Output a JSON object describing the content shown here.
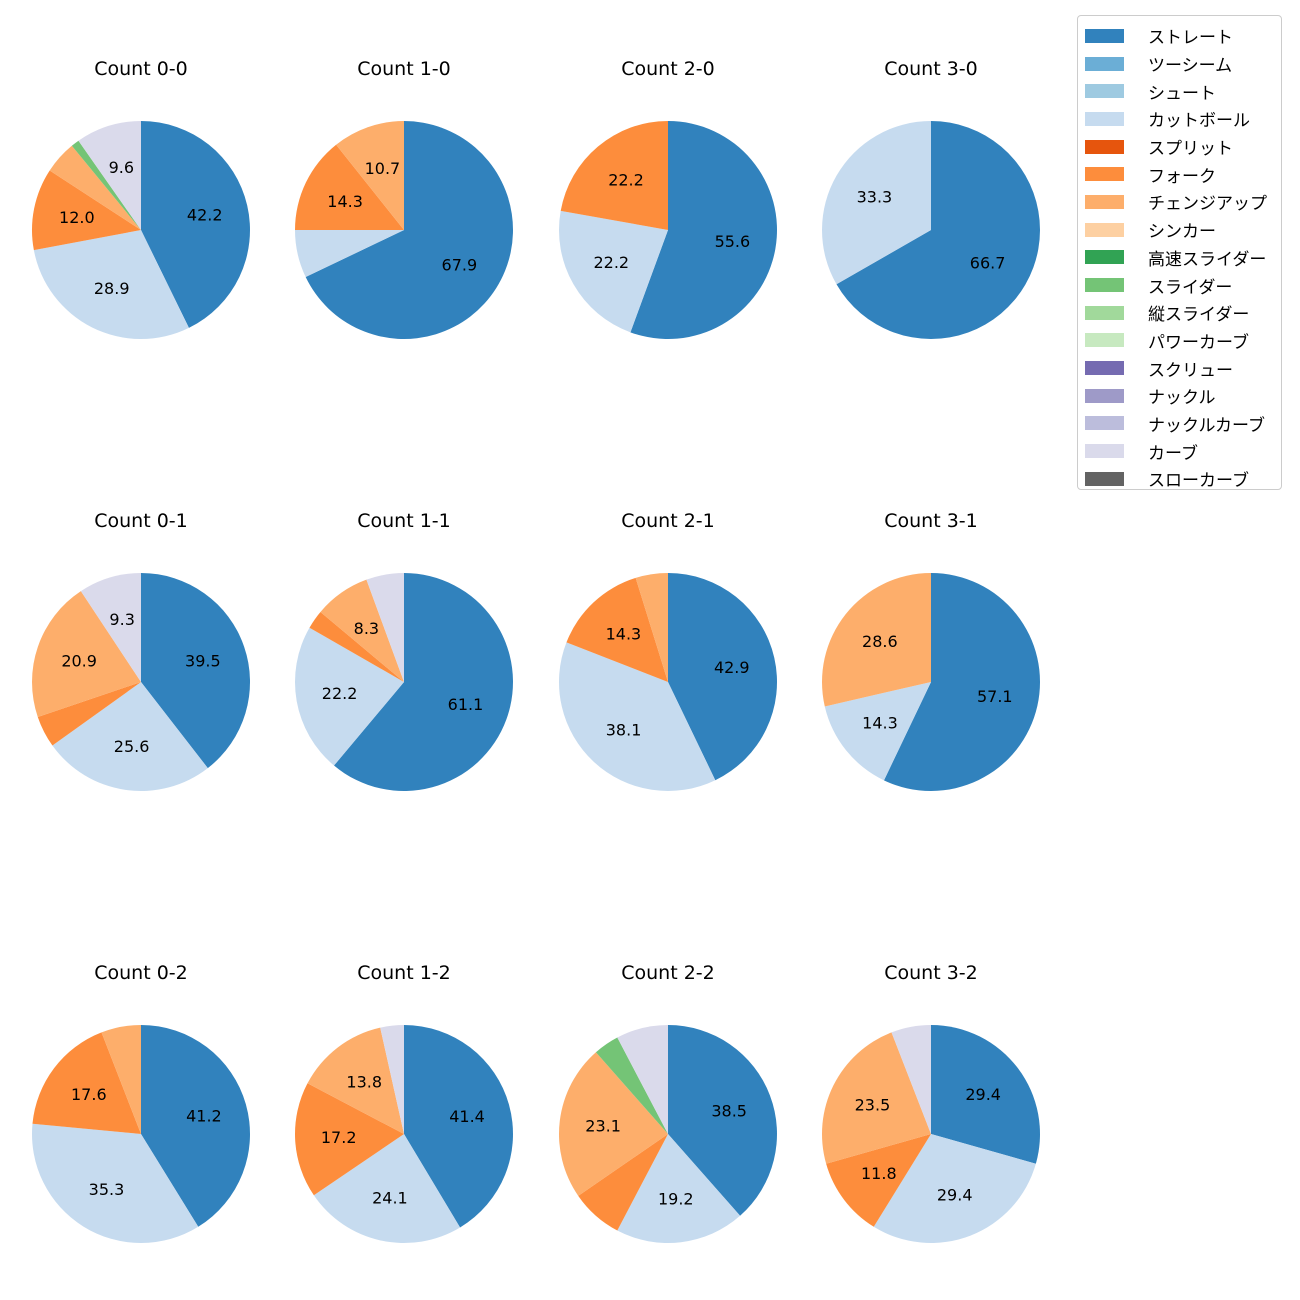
{
  "chart_data": {
    "type": "pie",
    "legend_position": "top-right",
    "legend": [
      {
        "label": "ストレート",
        "color": "#3182bd"
      },
      {
        "label": "ツーシーム",
        "color": "#6baed6"
      },
      {
        "label": "シュート",
        "color": "#9ecae1"
      },
      {
        "label": "カットボール",
        "color": "#c6dbef"
      },
      {
        "label": "スプリット",
        "color": "#e6550d"
      },
      {
        "label": "フォーク",
        "color": "#fd8d3c"
      },
      {
        "label": "チェンジアップ",
        "color": "#fdae6b"
      },
      {
        "label": "シンカー",
        "color": "#fdd0a2"
      },
      {
        "label": "高速スライダー",
        "color": "#31a354"
      },
      {
        "label": "スライダー",
        "color": "#74c476"
      },
      {
        "label": "縦スライダー",
        "color": "#a1d99b"
      },
      {
        "label": "パワーカーブ",
        "color": "#c7e9c0"
      },
      {
        "label": "スクリュー",
        "color": "#756bb1"
      },
      {
        "label": "ナックル",
        "color": "#9e9ac8"
      },
      {
        "label": "ナックルカーブ",
        "color": "#bcbddc"
      },
      {
        "label": "カーブ",
        "color": "#dadaeb"
      },
      {
        "label": "スローカーブ",
        "color": "#636363"
      }
    ],
    "charts": [
      {
        "title": "Count 0-0",
        "slices": [
          {
            "pitch": "ストレート",
            "value": 42.2,
            "label": "42.2"
          },
          {
            "pitch": "カットボール",
            "value": 28.9,
            "label": "28.9"
          },
          {
            "pitch": "フォーク",
            "value": 12.0,
            "label": "12.0"
          },
          {
            "pitch": "チェンジアップ",
            "value": 4.8,
            "label": ""
          },
          {
            "pitch": "スライダー",
            "value": 1.2,
            "label": ""
          },
          {
            "pitch": "カーブ",
            "value": 9.6,
            "label": "9.6"
          }
        ]
      },
      {
        "title": "Count 1-0",
        "slices": [
          {
            "pitch": "ストレート",
            "value": 67.9,
            "label": "67.9"
          },
          {
            "pitch": "カットボール",
            "value": 7.1,
            "label": ""
          },
          {
            "pitch": "フォーク",
            "value": 14.3,
            "label": "14.3"
          },
          {
            "pitch": "チェンジアップ",
            "value": 10.7,
            "label": "10.7"
          }
        ]
      },
      {
        "title": "Count 2-0",
        "slices": [
          {
            "pitch": "ストレート",
            "value": 55.6,
            "label": "55.6"
          },
          {
            "pitch": "カットボール",
            "value": 22.2,
            "label": "22.2"
          },
          {
            "pitch": "フォーク",
            "value": 22.2,
            "label": "22.2"
          }
        ]
      },
      {
        "title": "Count 3-0",
        "slices": [
          {
            "pitch": "ストレート",
            "value": 66.7,
            "label": "66.7"
          },
          {
            "pitch": "カットボール",
            "value": 33.3,
            "label": "33.3"
          }
        ]
      },
      {
        "title": "Count 0-1",
        "slices": [
          {
            "pitch": "ストレート",
            "value": 39.5,
            "label": "39.5"
          },
          {
            "pitch": "カットボール",
            "value": 25.6,
            "label": "25.6"
          },
          {
            "pitch": "フォーク",
            "value": 4.7,
            "label": ""
          },
          {
            "pitch": "チェンジアップ",
            "value": 20.9,
            "label": "20.9"
          },
          {
            "pitch": "カーブ",
            "value": 9.3,
            "label": "9.3"
          }
        ]
      },
      {
        "title": "Count 1-1",
        "slices": [
          {
            "pitch": "ストレート",
            "value": 61.1,
            "label": "61.1"
          },
          {
            "pitch": "カットボール",
            "value": 22.2,
            "label": "22.2"
          },
          {
            "pitch": "フォーク",
            "value": 2.8,
            "label": ""
          },
          {
            "pitch": "チェンジアップ",
            "value": 8.3,
            "label": "8.3"
          },
          {
            "pitch": "カーブ",
            "value": 5.6,
            "label": ""
          }
        ]
      },
      {
        "title": "Count 2-1",
        "slices": [
          {
            "pitch": "ストレート",
            "value": 42.9,
            "label": "42.9"
          },
          {
            "pitch": "カットボール",
            "value": 38.1,
            "label": "38.1"
          },
          {
            "pitch": "フォーク",
            "value": 14.3,
            "label": "14.3"
          },
          {
            "pitch": "チェンジアップ",
            "value": 4.8,
            "label": ""
          }
        ]
      },
      {
        "title": "Count 3-1",
        "slices": [
          {
            "pitch": "ストレート",
            "value": 57.1,
            "label": "57.1"
          },
          {
            "pitch": "カットボール",
            "value": 14.3,
            "label": "14.3"
          },
          {
            "pitch": "チェンジアップ",
            "value": 28.6,
            "label": "28.6"
          }
        ]
      },
      {
        "title": "Count 0-2",
        "slices": [
          {
            "pitch": "ストレート",
            "value": 41.2,
            "label": "41.2"
          },
          {
            "pitch": "カットボール",
            "value": 35.3,
            "label": "35.3"
          },
          {
            "pitch": "フォーク",
            "value": 17.6,
            "label": "17.6"
          },
          {
            "pitch": "チェンジアップ",
            "value": 5.9,
            "label": ""
          }
        ]
      },
      {
        "title": "Count 1-2",
        "slices": [
          {
            "pitch": "ストレート",
            "value": 41.4,
            "label": "41.4"
          },
          {
            "pitch": "カットボール",
            "value": 24.1,
            "label": "24.1"
          },
          {
            "pitch": "フォーク",
            "value": 17.2,
            "label": "17.2"
          },
          {
            "pitch": "チェンジアップ",
            "value": 13.8,
            "label": "13.8"
          },
          {
            "pitch": "カーブ",
            "value": 3.5,
            "label": ""
          }
        ]
      },
      {
        "title": "Count 2-2",
        "slices": [
          {
            "pitch": "ストレート",
            "value": 38.5,
            "label": "38.5"
          },
          {
            "pitch": "カットボール",
            "value": 19.2,
            "label": "19.2"
          },
          {
            "pitch": "フォーク",
            "value": 7.7,
            "label": ""
          },
          {
            "pitch": "チェンジアップ",
            "value": 23.1,
            "label": "23.1"
          },
          {
            "pitch": "スライダー",
            "value": 3.8,
            "label": ""
          },
          {
            "pitch": "カーブ",
            "value": 7.7,
            "label": ""
          }
        ]
      },
      {
        "title": "Count 3-2",
        "slices": [
          {
            "pitch": "ストレート",
            "value": 29.4,
            "label": "29.4"
          },
          {
            "pitch": "カットボール",
            "value": 29.4,
            "label": "29.4"
          },
          {
            "pitch": "フォーク",
            "value": 11.8,
            "label": "11.8"
          },
          {
            "pitch": "チェンジアップ",
            "value": 23.5,
            "label": "23.5"
          },
          {
            "pitch": "カーブ",
            "value": 5.9,
            "label": ""
          }
        ]
      }
    ]
  }
}
